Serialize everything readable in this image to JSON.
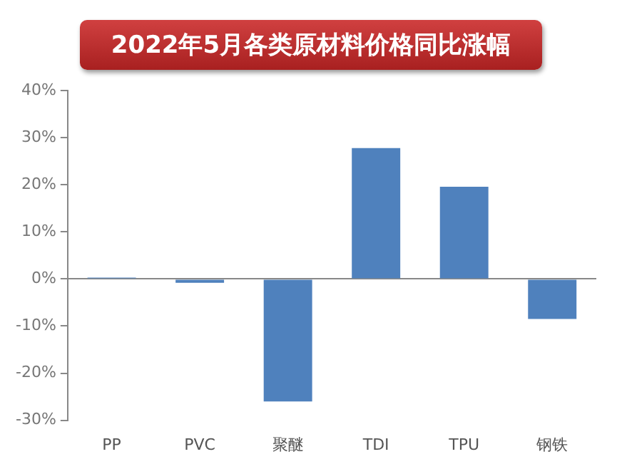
{
  "chart_data": {
    "type": "bar",
    "title": "2022年5月各类原材料价格同比涨幅",
    "categories": [
      "PP",
      "PVC",
      "聚醚",
      "TDI",
      "TPU",
      "钢铁"
    ],
    "values": [
      0.3,
      -0.8,
      -26,
      27.8,
      19.6,
      -8.5
    ],
    "color": "#4f81bd",
    "ylim": [
      -30,
      40
    ],
    "yticks": [
      {
        "value": -30,
        "label": "-30%"
      },
      {
        "value": -20,
        "label": "-20%"
      },
      {
        "value": -10,
        "label": "-10%"
      },
      {
        "value": 0,
        "label": "0%"
      },
      {
        "value": 10,
        "label": "10%"
      },
      {
        "value": 20,
        "label": "20%"
      },
      {
        "value": 30,
        "label": "30%"
      },
      {
        "value": 40,
        "label": "40%"
      }
    ]
  }
}
